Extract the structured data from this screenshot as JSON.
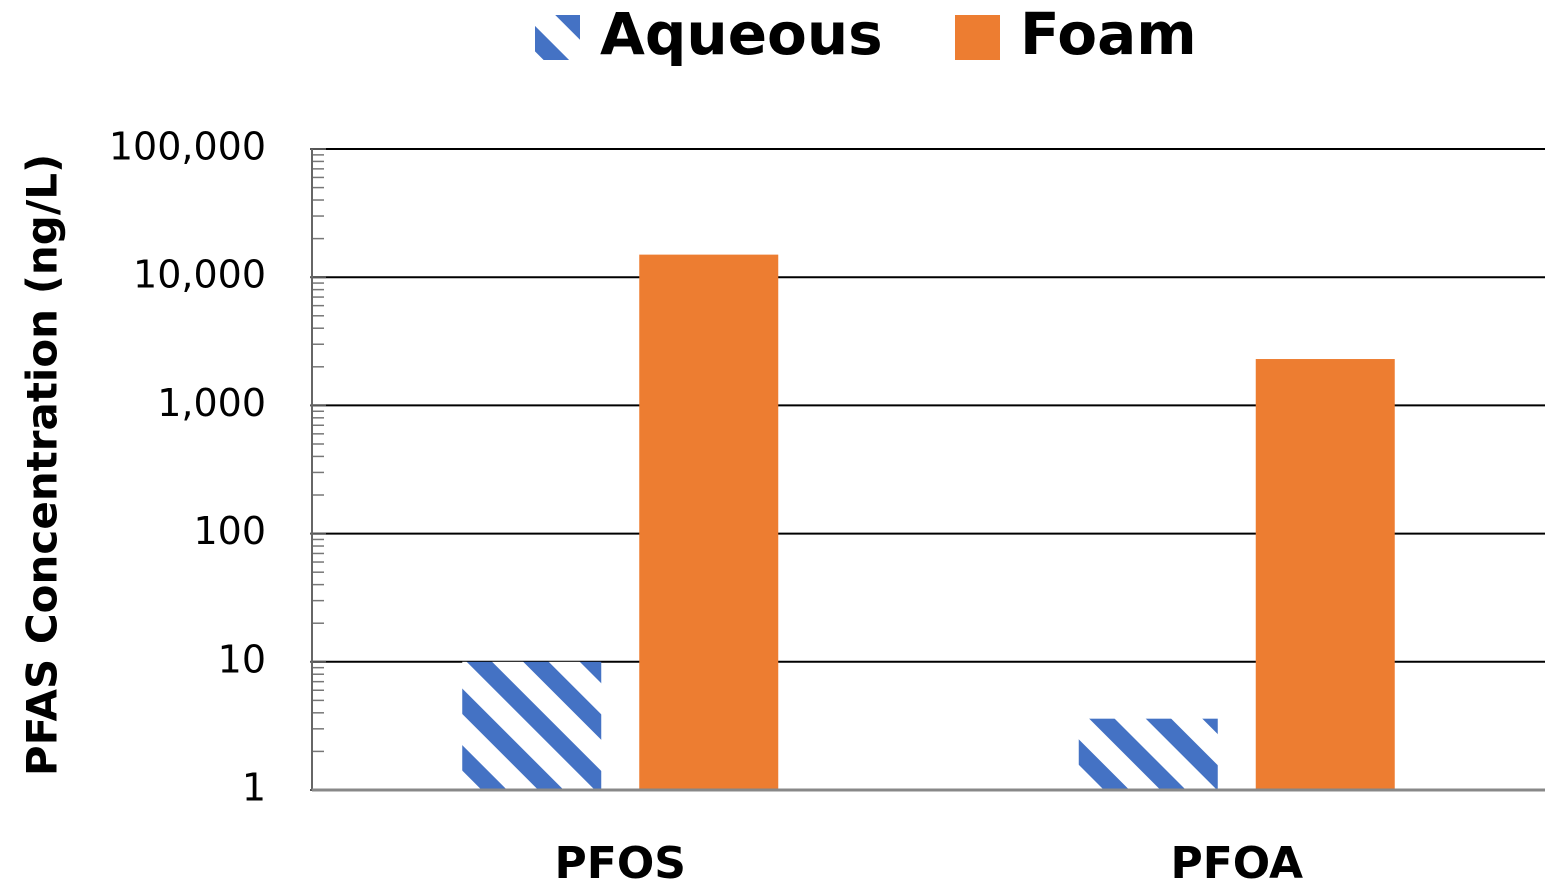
{
  "chart_data": {
    "type": "bar",
    "y_label": "PFAS Concentration (ng/L)",
    "categories": [
      "PFOS",
      "PFOA"
    ],
    "series": [
      {
        "name": "Aqueous",
        "color": "#4472c4",
        "hatch": true,
        "values": [
          10,
          3.6
        ]
      },
      {
        "name": "Foam",
        "color": "#ed7d31",
        "hatch": false,
        "values": [
          15000,
          2300
        ]
      }
    ],
    "log_scale": true,
    "ylim": [
      1,
      100000
    ],
    "yticks": [
      1,
      10,
      100,
      {
        "value": 1000,
        "label": "1,000"
      },
      {
        "value": 10000,
        "label": "10,000"
      },
      {
        "value": 100000,
        "label": "100,000"
      }
    ],
    "grid": true,
    "minor_ticks": true,
    "legend": "top"
  }
}
